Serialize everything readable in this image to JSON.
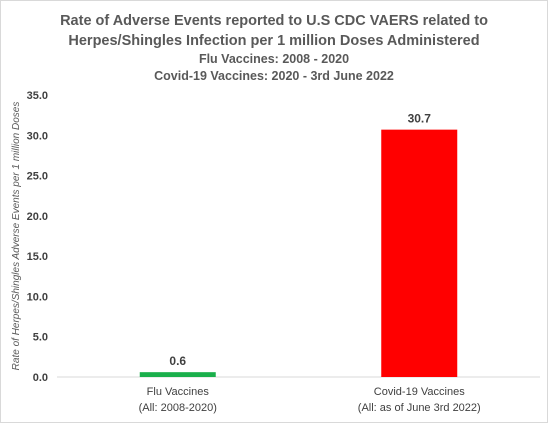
{
  "chart_data": {
    "type": "bar",
    "title": "Rate of Adverse Events reported to U.S CDC VAERS related to",
    "title_line2": "Herpes/Shingles Infection per 1 million Doses Administered",
    "subtitle_line1": "Flu Vaccines: 2008 - 2020",
    "subtitle_line2": "Covid-19 Vaccines: 2020 - 3rd June 2022",
    "ylabel": "Rate of Herpes/Shingles Adverse Events per 1 million Doses",
    "xlabel": "",
    "ylim": [
      0,
      35
    ],
    "yticks": [
      "35.0",
      "30.0",
      "25.0",
      "20.0",
      "15.0",
      "10.0",
      "5.0",
      "0.0"
    ],
    "ytick_values": [
      35,
      30,
      25,
      20,
      15,
      10,
      5,
      0
    ],
    "categories": [
      {
        "name": "Flu Vaccines",
        "sub": "(All: 2008-2020)"
      },
      {
        "name": "Covid-19 Vaccines",
        "sub": "(All: as of June 3rd 2022)"
      }
    ],
    "values": [
      0.6,
      30.7
    ],
    "value_labels": [
      "0.6",
      "30.7"
    ],
    "colors": [
      "#1aaf4b",
      "#ff0000"
    ],
    "grid": false,
    "legend": "none"
  }
}
